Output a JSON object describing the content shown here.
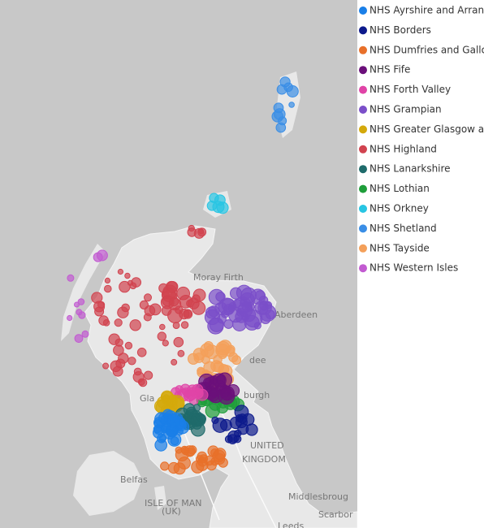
{
  "map": {
    "labels": [
      "Moray Firth",
      "Aberdeen",
      "dee",
      "burgh",
      "Gla",
      "UNITED",
      "KINGDOM",
      "Belfas",
      "ISLE OF MAN",
      "(UK)",
      "Middlesbroug",
      "Scarbor",
      "Leeds"
    ],
    "legend": [
      {
        "name": "NHS Ayrshire and Arran",
        "color": "#1a7fe8"
      },
      {
        "name": "NHS Borders",
        "color": "#0d1a8c"
      },
      {
        "name": "NHS Dumfries and Gallow",
        "color": "#e8702a"
      },
      {
        "name": "NHS Fife",
        "color": "#6b0f7a"
      },
      {
        "name": "NHS Forth Valley",
        "color": "#e044a7"
      },
      {
        "name": "NHS Grampian",
        "color": "#7b4fc9"
      },
      {
        "name": "NHS Greater Glasgow and",
        "color": "#d4a90b"
      },
      {
        "name": "NHS Highland",
        "color": "#d1434f"
      },
      {
        "name": "NHS Lanarkshire",
        "color": "#1f6b6b"
      },
      {
        "name": "NHS Lothian",
        "color": "#1f9e3a"
      },
      {
        "name": "NHS Orkney",
        "color": "#28c5e3"
      },
      {
        "name": "NHS Shetland",
        "color": "#3a8ee6"
      },
      {
        "name": "NHS Tayside",
        "color": "#f4a05a"
      },
      {
        "name": "NHS Western Isles",
        "color": "#c25bd1"
      }
    ]
  }
}
